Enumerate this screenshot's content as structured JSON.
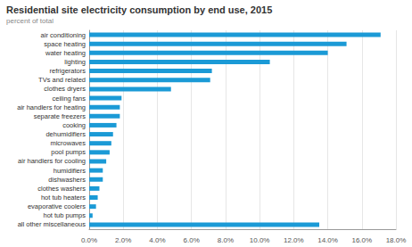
{
  "chart_data": {
    "type": "bar",
    "orientation": "horizontal",
    "title": "Residential site electricity consumption by end use, 2015",
    "subtitle": "percent of total",
    "categories": [
      "air conditioning",
      "space heating",
      "water heating",
      "lighting",
      "refrigerators",
      "TVs and related",
      "clothes dryers",
      "ceiling fans",
      "air handlers for heating",
      "separate freezers",
      "cooking",
      "dehumidifiers",
      "microwaves",
      "pool pumps",
      "air handlers for cooling",
      "humidifiers",
      "dishwashers",
      "clothes washers",
      "hot tub heaters",
      "evaporative coolers",
      "hot tub pumps",
      "all other miscellaneous"
    ],
    "values": [
      17.1,
      15.1,
      14.0,
      10.6,
      7.2,
      7.1,
      4.8,
      1.9,
      1.8,
      1.8,
      1.6,
      1.4,
      1.3,
      1.2,
      1.0,
      0.8,
      0.8,
      0.6,
      0.5,
      0.4,
      0.2,
      13.5
    ],
    "color": "#1b9ad6",
    "xlim": [
      0,
      18
    ],
    "xticks": [
      {
        "value": 0,
        "label": "0.0%"
      },
      {
        "value": 2,
        "label": "2.0%"
      },
      {
        "value": 4,
        "label": "4.0%"
      },
      {
        "value": 6,
        "label": "6.0%"
      },
      {
        "value": 8,
        "label": "8.0%"
      },
      {
        "value": 10,
        "label": "10.0%"
      },
      {
        "value": 12,
        "label": "12.0%"
      },
      {
        "value": 14,
        "label": "14.0%"
      },
      {
        "value": 16,
        "label": "16.0%"
      },
      {
        "value": 18,
        "label": "18.0%"
      }
    ],
    "grid": true
  }
}
